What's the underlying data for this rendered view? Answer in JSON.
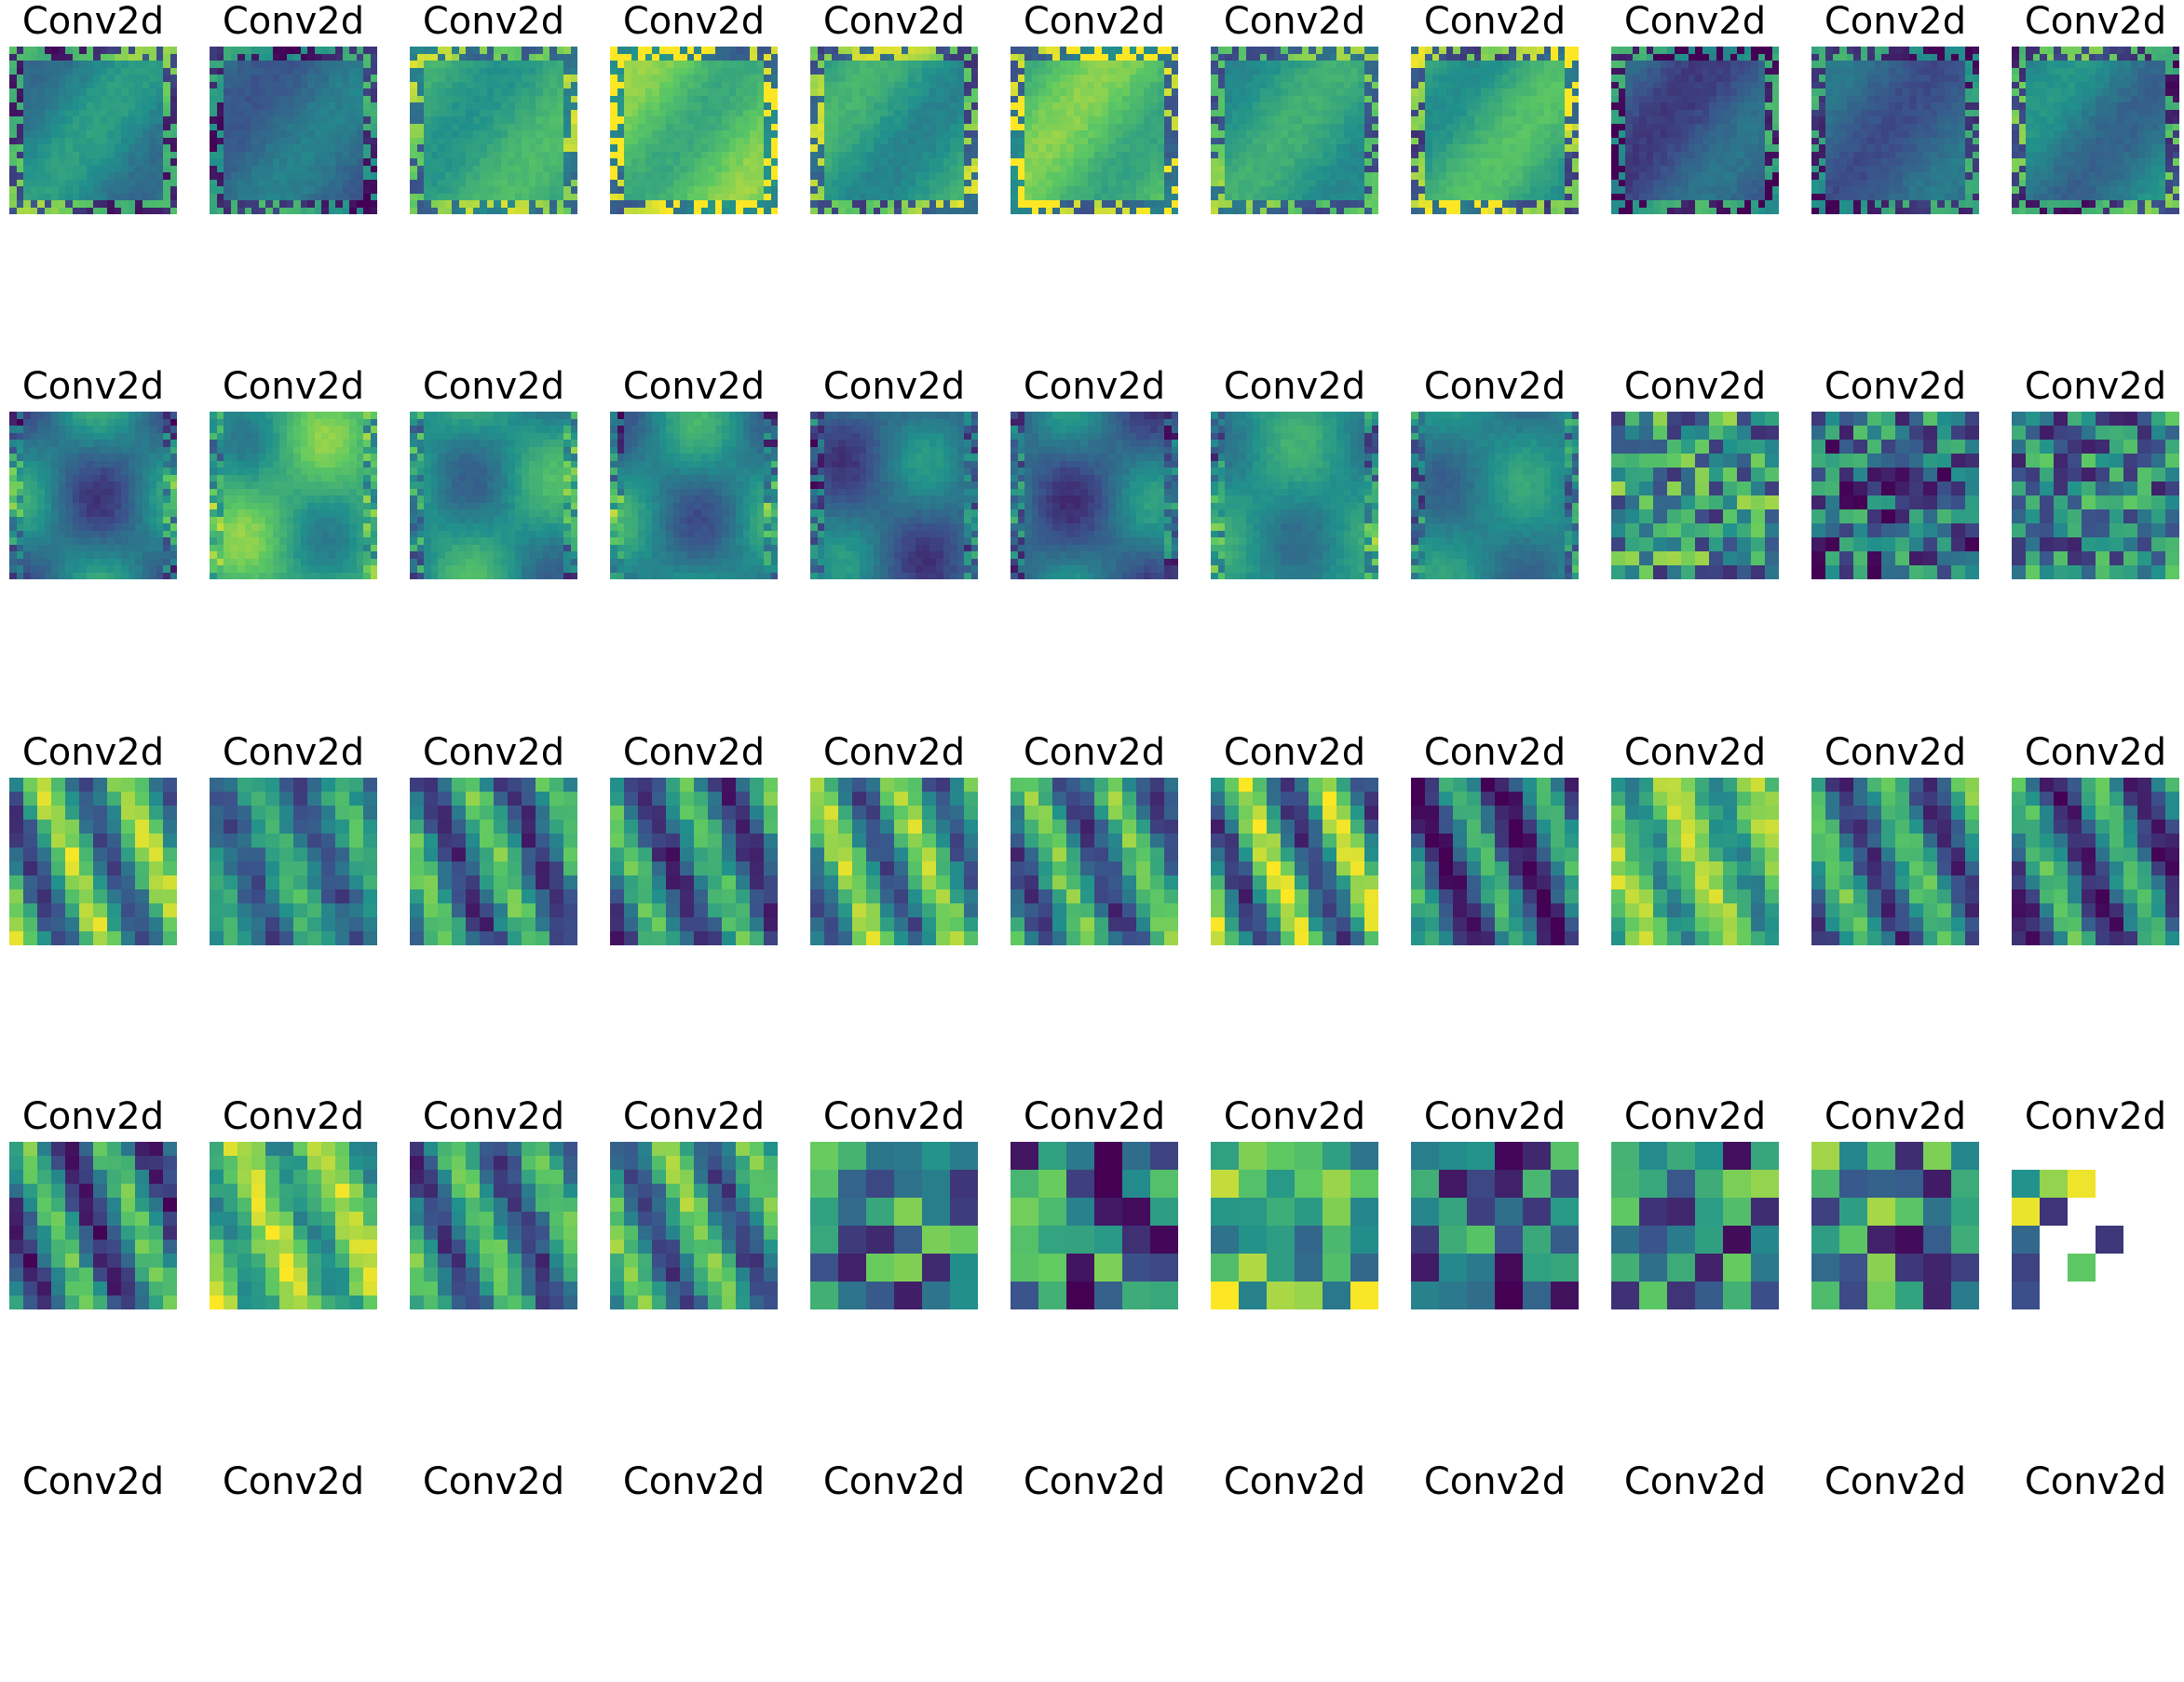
{
  "chart_data": {
    "type": "heatmap",
    "layout": {
      "rows": 5,
      "cols": 11
    },
    "colormap": "viridis",
    "colors": {
      "viridis": [
        "#440154",
        "#3b528b",
        "#21918c",
        "#5ec962",
        "#fde725"
      ],
      "background": "#ffffff"
    },
    "panels": [
      {
        "row": 0,
        "col": 0,
        "title": "Conv2d",
        "grid": 24,
        "style": "frame",
        "seed": 1,
        "base": 0.45,
        "contrast": 0.18
      },
      {
        "row": 0,
        "col": 1,
        "title": "Conv2d",
        "grid": 24,
        "style": "frame",
        "seed": 2,
        "base": 0.35,
        "contrast": 0.15
      },
      {
        "row": 0,
        "col": 2,
        "title": "Conv2d",
        "grid": 24,
        "style": "frame",
        "seed": 3,
        "base": 0.6,
        "contrast": 0.15
      },
      {
        "row": 0,
        "col": 3,
        "title": "Conv2d",
        "grid": 24,
        "style": "frame",
        "seed": 4,
        "base": 0.72,
        "contrast": 0.2
      },
      {
        "row": 0,
        "col": 4,
        "title": "Conv2d",
        "grid": 24,
        "style": "frame",
        "seed": 5,
        "base": 0.55,
        "contrast": 0.18
      },
      {
        "row": 0,
        "col": 5,
        "title": "Conv2d",
        "grid": 24,
        "style": "frame",
        "seed": 6,
        "base": 0.7,
        "contrast": 0.2
      },
      {
        "row": 0,
        "col": 6,
        "title": "Conv2d",
        "grid": 24,
        "style": "frame",
        "seed": 7,
        "base": 0.55,
        "contrast": 0.15
      },
      {
        "row": 0,
        "col": 7,
        "title": "Conv2d",
        "grid": 24,
        "style": "frame",
        "seed": 8,
        "base": 0.6,
        "contrast": 0.2
      },
      {
        "row": 0,
        "col": 8,
        "title": "Conv2d",
        "grid": 24,
        "style": "frame",
        "seed": 9,
        "base": 0.28,
        "contrast": 0.18
      },
      {
        "row": 0,
        "col": 9,
        "title": "Conv2d",
        "grid": 24,
        "style": "frame",
        "seed": 10,
        "base": 0.32,
        "contrast": 0.15
      },
      {
        "row": 0,
        "col": 10,
        "title": "Conv2d",
        "grid": 24,
        "style": "frame",
        "seed": 11,
        "base": 0.42,
        "contrast": 0.18
      },
      {
        "row": 1,
        "col": 0,
        "title": "Conv2d",
        "grid": 24,
        "style": "blob",
        "seed": 12,
        "base": 0.4,
        "contrast": 0.25
      },
      {
        "row": 1,
        "col": 1,
        "title": "Conv2d",
        "grid": 24,
        "style": "blob",
        "seed": 13,
        "base": 0.62,
        "contrast": 0.22
      },
      {
        "row": 1,
        "col": 2,
        "title": "Conv2d",
        "grid": 24,
        "style": "blob",
        "seed": 14,
        "base": 0.5,
        "contrast": 0.2
      },
      {
        "row": 1,
        "col": 3,
        "title": "Conv2d",
        "grid": 24,
        "style": "blob",
        "seed": 15,
        "base": 0.45,
        "contrast": 0.22
      },
      {
        "row": 1,
        "col": 4,
        "title": "Conv2d",
        "grid": 24,
        "style": "blob",
        "seed": 16,
        "base": 0.35,
        "contrast": 0.2
      },
      {
        "row": 1,
        "col": 5,
        "title": "Conv2d",
        "grid": 24,
        "style": "blob",
        "seed": 17,
        "base": 0.35,
        "contrast": 0.22
      },
      {
        "row": 1,
        "col": 6,
        "title": "Conv2d",
        "grid": 24,
        "style": "blob",
        "seed": 18,
        "base": 0.5,
        "contrast": 0.15
      },
      {
        "row": 1,
        "col": 7,
        "title": "Conv2d",
        "grid": 24,
        "style": "blob",
        "seed": 19,
        "base": 0.45,
        "contrast": 0.15
      },
      {
        "row": 1,
        "col": 8,
        "title": "Conv2d",
        "grid": 12,
        "style": "noise",
        "seed": 20,
        "base": 0.5,
        "contrast": 0.3
      },
      {
        "row": 1,
        "col": 9,
        "title": "Conv2d",
        "grid": 12,
        "style": "noise",
        "seed": 21,
        "base": 0.35,
        "contrast": 0.3
      },
      {
        "row": 1,
        "col": 10,
        "title": "Conv2d",
        "grid": 12,
        "style": "noise",
        "seed": 22,
        "base": 0.42,
        "contrast": 0.28
      },
      {
        "row": 2,
        "col": 0,
        "title": "Conv2d",
        "grid": 12,
        "style": "stripe",
        "seed": 23,
        "base": 0.55,
        "contrast": 0.35
      },
      {
        "row": 2,
        "col": 1,
        "title": "Conv2d",
        "grid": 12,
        "style": "stripe",
        "seed": 24,
        "base": 0.45,
        "contrast": 0.2
      },
      {
        "row": 2,
        "col": 2,
        "title": "Conv2d",
        "grid": 12,
        "style": "stripe",
        "seed": 25,
        "base": 0.45,
        "contrast": 0.3
      },
      {
        "row": 2,
        "col": 3,
        "title": "Conv2d",
        "grid": 12,
        "style": "stripe",
        "seed": 26,
        "base": 0.42,
        "contrast": 0.3
      },
      {
        "row": 2,
        "col": 4,
        "title": "Conv2d",
        "grid": 12,
        "style": "stripe",
        "seed": 27,
        "base": 0.55,
        "contrast": 0.32
      },
      {
        "row": 2,
        "col": 5,
        "title": "Conv2d",
        "grid": 12,
        "style": "stripe",
        "seed": 28,
        "base": 0.48,
        "contrast": 0.3
      },
      {
        "row": 2,
        "col": 6,
        "title": "Conv2d",
        "grid": 12,
        "style": "stripe",
        "seed": 29,
        "base": 0.55,
        "contrast": 0.38
      },
      {
        "row": 2,
        "col": 7,
        "title": "Conv2d",
        "grid": 12,
        "style": "stripe",
        "seed": 30,
        "base": 0.32,
        "contrast": 0.32
      },
      {
        "row": 2,
        "col": 8,
        "title": "Conv2d",
        "grid": 12,
        "style": "stripe",
        "seed": 31,
        "base": 0.68,
        "contrast": 0.22
      },
      {
        "row": 2,
        "col": 9,
        "title": "Conv2d",
        "grid": 12,
        "style": "stripe",
        "seed": 32,
        "base": 0.45,
        "contrast": 0.3
      },
      {
        "row": 2,
        "col": 10,
        "title": "Conv2d",
        "grid": 12,
        "style": "stripe",
        "seed": 33,
        "base": 0.38,
        "contrast": 0.32
      },
      {
        "row": 3,
        "col": 0,
        "title": "Conv2d",
        "grid": 12,
        "style": "stripe",
        "seed": 34,
        "base": 0.42,
        "contrast": 0.32
      },
      {
        "row": 3,
        "col": 1,
        "title": "Conv2d",
        "grid": 12,
        "style": "stripe",
        "seed": 35,
        "base": 0.7,
        "contrast": 0.22
      },
      {
        "row": 3,
        "col": 2,
        "title": "Conv2d",
        "grid": 12,
        "style": "stripe",
        "seed": 36,
        "base": 0.45,
        "contrast": 0.3
      },
      {
        "row": 3,
        "col": 3,
        "title": "Conv2d",
        "grid": 12,
        "style": "stripe",
        "seed": 37,
        "base": 0.5,
        "contrast": 0.3
      },
      {
        "row": 3,
        "col": 4,
        "title": "Conv2d",
        "grid": 6,
        "style": "noise",
        "seed": 38,
        "base": 0.42,
        "contrast": 0.35
      },
      {
        "row": 3,
        "col": 5,
        "title": "Conv2d",
        "grid": 6,
        "style": "noise",
        "seed": 39,
        "base": 0.38,
        "contrast": 0.35
      },
      {
        "row": 3,
        "col": 6,
        "title": "Conv2d",
        "grid": 6,
        "style": "noise",
        "seed": 40,
        "base": 0.68,
        "contrast": 0.3
      },
      {
        "row": 3,
        "col": 7,
        "title": "Conv2d",
        "grid": 6,
        "style": "noise",
        "seed": 41,
        "base": 0.38,
        "contrast": 0.35
      },
      {
        "row": 3,
        "col": 8,
        "title": "Conv2d",
        "grid": 6,
        "style": "noise",
        "seed": 42,
        "base": 0.42,
        "contrast": 0.35
      },
      {
        "row": 3,
        "col": 9,
        "title": "Conv2d",
        "grid": 6,
        "style": "noise",
        "seed": 43,
        "base": 0.45,
        "contrast": 0.35
      },
      {
        "row": 3,
        "col": 10,
        "title": "Conv2d",
        "grid": 6,
        "style": "sparse",
        "seed": 44,
        "base": 0.5,
        "contrast": 0.4
      },
      {
        "row": 4,
        "col": 0,
        "title": "Conv2d",
        "style": "empty"
      },
      {
        "row": 4,
        "col": 1,
        "title": "Conv2d",
        "style": "empty"
      },
      {
        "row": 4,
        "col": 2,
        "title": "Conv2d",
        "style": "empty"
      },
      {
        "row": 4,
        "col": 3,
        "title": "Conv2d",
        "style": "empty"
      },
      {
        "row": 4,
        "col": 4,
        "title": "Conv2d",
        "style": "empty"
      },
      {
        "row": 4,
        "col": 5,
        "title": "Conv2d",
        "style": "empty"
      },
      {
        "row": 4,
        "col": 6,
        "title": "Conv2d",
        "style": "empty"
      },
      {
        "row": 4,
        "col": 7,
        "title": "Conv2d",
        "style": "empty"
      },
      {
        "row": 4,
        "col": 8,
        "title": "Conv2d",
        "style": "empty"
      },
      {
        "row": 4,
        "col": 9,
        "title": "Conv2d",
        "style": "empty"
      },
      {
        "row": 4,
        "col": 10,
        "title": "Conv2d",
        "style": "empty"
      }
    ]
  }
}
